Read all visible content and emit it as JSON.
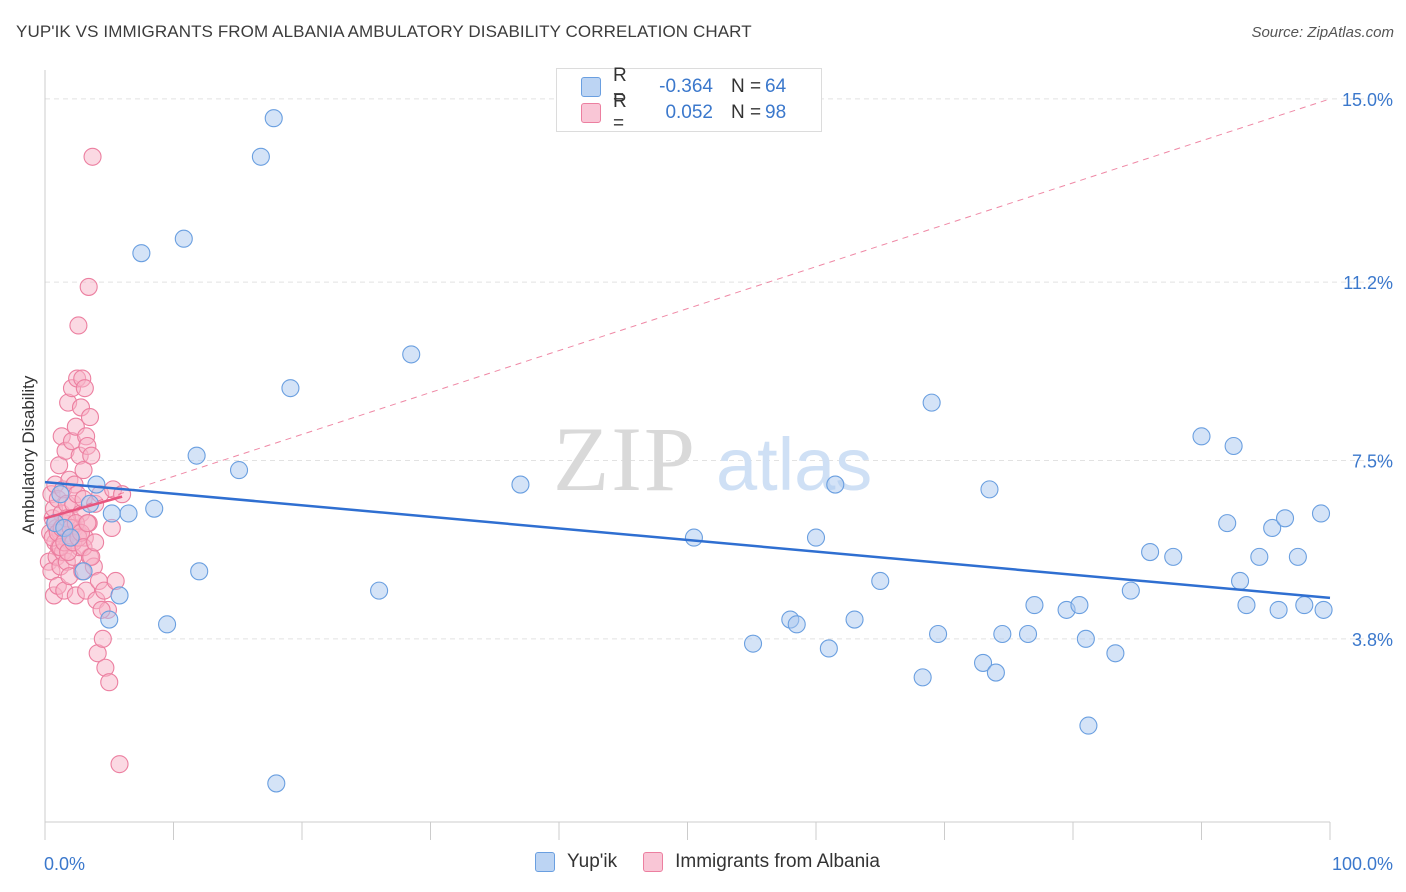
{
  "header": {
    "title": "YUP'IK VS IMMIGRANTS FROM ALBANIA AMBULATORY DISABILITY CORRELATION CHART",
    "source": "Source: ZipAtlas.com"
  },
  "watermark": {
    "zip": "ZIP",
    "atlas": "atlas"
  },
  "legend": {
    "rows": [
      {
        "r_label": "R =",
        "r_value": "-0.364",
        "n_label": "N =",
        "n_value": "64"
      },
      {
        "r_label": "R =",
        "r_value": "0.052",
        "n_label": "N =",
        "n_value": "98"
      }
    ]
  },
  "colors": {
    "yupik_fill": "#a9c8f0",
    "yupik_stroke": "#6a9fe0",
    "yupik_line": "#2f6fd1",
    "albania_fill": "#f7b3c8",
    "albania_stroke": "#ec7fa0",
    "albania_line": "#e8557f",
    "axis_label": "#3b78cc",
    "grid": "#e2e2e2"
  },
  "chart_data": {
    "type": "scatter",
    "title": "YUP'IK VS IMMIGRANTS FROM ALBANIA AMBULATORY DISABILITY CORRELATION CHART",
    "xlabel": "",
    "ylabel": "Ambulatory Disability",
    "xlim": [
      0,
      100
    ],
    "ylim": [
      0,
      15.6
    ],
    "x_tick_labels": [
      "0.0%",
      "100.0%"
    ],
    "y_ticks": [
      3.8,
      7.5,
      11.2,
      15.0
    ],
    "y_tick_labels": [
      "3.8%",
      "7.5%",
      "11.2%",
      "15.0%"
    ],
    "grid": true,
    "legend_position": "bottom",
    "series": [
      {
        "name": "Yup'ik",
        "color": "#a9c8f0",
        "points": [
          [
            0.8,
            6.2
          ],
          [
            1.2,
            6.8
          ],
          [
            1.5,
            6.1
          ],
          [
            2.0,
            5.9
          ],
          [
            3.0,
            5.2
          ],
          [
            3.5,
            6.6
          ],
          [
            4.0,
            7.0
          ],
          [
            5.0,
            4.2
          ],
          [
            5.2,
            6.4
          ],
          [
            5.8,
            4.7
          ],
          [
            6.5,
            6.4
          ],
          [
            7.5,
            11.8
          ],
          [
            8.5,
            6.5
          ],
          [
            9.5,
            4.1
          ],
          [
            10.8,
            12.1
          ],
          [
            11.8,
            7.6
          ],
          [
            12.0,
            5.2
          ],
          [
            15.1,
            7.3
          ],
          [
            16.8,
            13.8
          ],
          [
            17.8,
            14.6
          ],
          [
            18.0,
            0.8
          ],
          [
            19.1,
            9.0
          ],
          [
            26.0,
            4.8
          ],
          [
            28.5,
            9.7
          ],
          [
            37.0,
            7.0
          ],
          [
            50.5,
            5.9
          ],
          [
            55.1,
            3.7
          ],
          [
            58.0,
            4.2
          ],
          [
            58.5,
            4.1
          ],
          [
            60.0,
            5.9
          ],
          [
            61.0,
            3.6
          ],
          [
            61.5,
            7.0
          ],
          [
            63.0,
            4.2
          ],
          [
            65.0,
            5.0
          ],
          [
            68.3,
            3.0
          ],
          [
            69.0,
            8.7
          ],
          [
            69.5,
            3.9
          ],
          [
            73.0,
            3.3
          ],
          [
            73.5,
            6.9
          ],
          [
            74.0,
            3.1
          ],
          [
            74.5,
            3.9
          ],
          [
            76.5,
            3.9
          ],
          [
            77.0,
            4.5
          ],
          [
            79.5,
            4.4
          ],
          [
            80.5,
            4.5
          ],
          [
            81.0,
            3.8
          ],
          [
            81.2,
            2.0
          ],
          [
            83.3,
            3.5
          ],
          [
            84.5,
            4.8
          ],
          [
            86.0,
            5.6
          ],
          [
            87.8,
            5.5
          ],
          [
            90.0,
            8.0
          ],
          [
            92.0,
            6.2
          ],
          [
            92.5,
            7.8
          ],
          [
            93.0,
            5.0
          ],
          [
            93.5,
            4.5
          ],
          [
            94.5,
            5.5
          ],
          [
            95.5,
            6.1
          ],
          [
            96.0,
            4.4
          ],
          [
            96.5,
            6.3
          ],
          [
            97.5,
            5.5
          ],
          [
            98.0,
            4.5
          ],
          [
            99.3,
            6.4
          ],
          [
            99.5,
            4.4
          ]
        ],
        "trend": [
          [
            0,
            7.05
          ],
          [
            100,
            4.65
          ]
        ]
      },
      {
        "name": "Immigrants from Albania",
        "color": "#f7b3c8",
        "points": [
          [
            0.3,
            5.4
          ],
          [
            0.4,
            6.0
          ],
          [
            0.5,
            6.8
          ],
          [
            0.5,
            5.2
          ],
          [
            0.6,
            6.3
          ],
          [
            0.7,
            4.7
          ],
          [
            0.7,
            6.5
          ],
          [
            0.8,
            5.8
          ],
          [
            0.8,
            7.0
          ],
          [
            0.9,
            5.5
          ],
          [
            0.9,
            6.1
          ],
          [
            1.0,
            4.9
          ],
          [
            1.0,
            6.7
          ],
          [
            1.1,
            5.7
          ],
          [
            1.1,
            7.4
          ],
          [
            1.2,
            6.0
          ],
          [
            1.2,
            5.3
          ],
          [
            1.3,
            6.4
          ],
          [
            1.3,
            8.0
          ],
          [
            1.4,
            5.6
          ],
          [
            1.4,
            6.9
          ],
          [
            1.5,
            6.2
          ],
          [
            1.5,
            4.8
          ],
          [
            1.6,
            5.9
          ],
          [
            1.6,
            7.7
          ],
          [
            1.7,
            6.6
          ],
          [
            1.7,
            5.4
          ],
          [
            1.8,
            8.7
          ],
          [
            1.8,
            6.0
          ],
          [
            1.9,
            7.1
          ],
          [
            1.9,
            5.1
          ],
          [
            2.0,
            6.3
          ],
          [
            2.0,
            5.8
          ],
          [
            2.1,
            9.0
          ],
          [
            2.1,
            7.9
          ],
          [
            2.2,
            6.6
          ],
          [
            2.2,
            5.5
          ],
          [
            2.3,
            7.0
          ],
          [
            2.3,
            6.1
          ],
          [
            2.4,
            8.2
          ],
          [
            2.4,
            4.7
          ],
          [
            2.5,
            9.2
          ],
          [
            2.5,
            6.8
          ],
          [
            2.6,
            6.0
          ],
          [
            2.6,
            10.3
          ],
          [
            2.7,
            7.6
          ],
          [
            2.7,
            5.7
          ],
          [
            2.8,
            8.6
          ],
          [
            2.8,
            6.4
          ],
          [
            2.9,
            9.2
          ],
          [
            2.9,
            5.2
          ],
          [
            3.0,
            7.3
          ],
          [
            3.0,
            6.7
          ],
          [
            3.1,
            9.0
          ],
          [
            3.1,
            5.9
          ],
          [
            3.2,
            8.0
          ],
          [
            3.2,
            4.8
          ],
          [
            3.3,
            7.8
          ],
          [
            3.4,
            6.2
          ],
          [
            3.4,
            11.1
          ],
          [
            3.5,
            8.4
          ],
          [
            3.5,
            5.5
          ],
          [
            3.6,
            7.6
          ],
          [
            3.7,
            13.8
          ],
          [
            3.8,
            5.3
          ],
          [
            3.9,
            6.6
          ],
          [
            4.0,
            4.6
          ],
          [
            4.1,
            3.5
          ],
          [
            4.2,
            5.0
          ],
          [
            4.3,
            6.8
          ],
          [
            4.5,
            3.8
          ],
          [
            4.6,
            4.8
          ],
          [
            4.7,
            3.2
          ],
          [
            4.9,
            4.4
          ],
          [
            5.0,
            2.9
          ],
          [
            5.2,
            6.1
          ],
          [
            5.3,
            6.9
          ],
          [
            5.5,
            5.0
          ],
          [
            0.6,
            5.9
          ],
          [
            0.8,
            6.2
          ],
          [
            1.0,
            6.0
          ],
          [
            1.2,
            5.7
          ],
          [
            1.3,
            6.1
          ],
          [
            1.5,
            5.8
          ],
          [
            1.7,
            6.3
          ],
          [
            1.8,
            5.6
          ],
          [
            2.0,
            6.1
          ],
          [
            2.2,
            5.8
          ],
          [
            2.4,
            6.2
          ],
          [
            2.6,
            5.9
          ],
          [
            2.8,
            6.0
          ],
          [
            3.0,
            5.7
          ],
          [
            3.3,
            6.2
          ],
          [
            3.6,
            5.5
          ],
          [
            3.9,
            5.8
          ],
          [
            4.4,
            4.4
          ],
          [
            5.8,
            1.2
          ],
          [
            6.0,
            6.8
          ]
        ],
        "trend": [
          [
            0,
            6.3
          ],
          [
            6.0,
            6.75
          ]
        ],
        "trend_extended": [
          [
            0,
            6.3
          ],
          [
            100,
            15.0
          ]
        ]
      }
    ]
  },
  "bottom_legend": {
    "items": [
      {
        "label": "Yup'ik"
      },
      {
        "label": "Immigrants from Albania"
      }
    ]
  }
}
